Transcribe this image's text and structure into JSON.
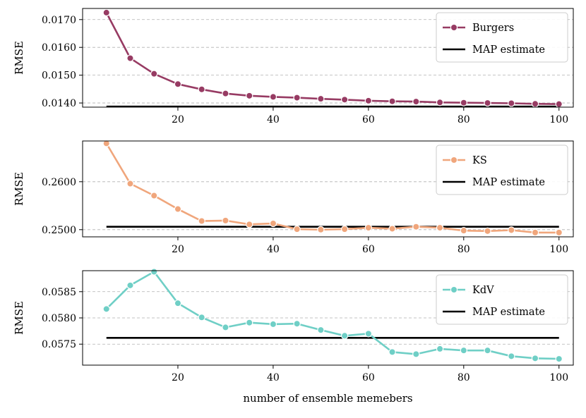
{
  "chart_data": [
    {
      "type": "line",
      "ylabel": "RMSE",
      "xlabel": "",
      "xlim": [
        0,
        103
      ],
      "ylim": [
        0.01385,
        0.0174
      ],
      "xticks": [
        20,
        40,
        60,
        80,
        100
      ],
      "yticks": [
        0.014,
        0.015,
        0.016,
        0.017
      ],
      "ytick_labels": [
        "0.0140",
        "0.0150",
        "0.0160",
        "0.0170"
      ],
      "grid": "y-dashed",
      "legend_position": "top-right",
      "series": [
        {
          "name": "Burgers",
          "color": "#973b63",
          "x": [
            5,
            10,
            15,
            20,
            25,
            30,
            35,
            40,
            45,
            50,
            55,
            60,
            65,
            70,
            75,
            80,
            85,
            90,
            95,
            100
          ],
          "values": [
            0.01725,
            0.01561,
            0.01505,
            0.01468,
            0.01449,
            0.01434,
            0.01426,
            0.01422,
            0.01419,
            0.01415,
            0.01412,
            0.01408,
            0.01406,
            0.01405,
            0.01402,
            0.01401,
            0.014,
            0.01399,
            0.01397,
            0.01396
          ]
        }
      ],
      "reference": {
        "name": "MAP estimate",
        "value": 0.01387,
        "x_range": [
          5,
          100
        ],
        "color": "#000000"
      }
    },
    {
      "type": "line",
      "ylabel": "RMSE",
      "xlabel": "",
      "xlim": [
        0,
        103
      ],
      "ylim": [
        0.2485,
        0.2685
      ],
      "xticks": [
        20,
        40,
        60,
        80,
        100
      ],
      "yticks": [
        0.25,
        0.26
      ],
      "ytick_labels": [
        "0.2500",
        "0.2600"
      ],
      "grid": "y-dashed",
      "legend_position": "top-right",
      "series": [
        {
          "name": "KS",
          "color": "#f0a67c",
          "x": [
            5,
            10,
            15,
            20,
            25,
            30,
            35,
            40,
            45,
            50,
            55,
            60,
            65,
            70,
            75,
            80,
            85,
            90,
            95,
            100
          ],
          "values": [
            0.268,
            0.2596,
            0.2571,
            0.2543,
            0.2518,
            0.2519,
            0.2511,
            0.2513,
            0.2501,
            0.25,
            0.2501,
            0.2504,
            0.2502,
            0.2506,
            0.2504,
            0.2498,
            0.2497,
            0.2499,
            0.2494,
            0.2494
          ]
        }
      ],
      "reference": {
        "name": "MAP estimate",
        "value": 0.2506,
        "x_range": [
          5,
          100
        ],
        "color": "#000000"
      }
    },
    {
      "type": "line",
      "ylabel": "RMSE",
      "xlabel": "number of ensemble memebers",
      "xlim": [
        0,
        103
      ],
      "ylim": [
        0.0571,
        0.0589
      ],
      "xticks": [
        20,
        40,
        60,
        80,
        100
      ],
      "yticks": [
        0.0575,
        0.058,
        0.0585
      ],
      "ytick_labels": [
        "0.0575",
        "0.0580",
        "0.0585"
      ],
      "grid": "y-dashed",
      "legend_position": "top-right",
      "series": [
        {
          "name": "KdV",
          "color": "#6fcfc6",
          "x": [
            5,
            10,
            15,
            20,
            25,
            30,
            35,
            40,
            45,
            50,
            55,
            60,
            65,
            70,
            75,
            80,
            85,
            90,
            95,
            100
          ],
          "values": [
            0.05817,
            0.05862,
            0.05888,
            0.05828,
            0.05801,
            0.05782,
            0.05791,
            0.05788,
            0.05789,
            0.05777,
            0.05766,
            0.0577,
            0.05735,
            0.05731,
            0.05741,
            0.05738,
            0.05738,
            0.05727,
            0.05723,
            0.05722
          ]
        }
      ],
      "reference": {
        "name": "MAP estimate",
        "value": 0.05762,
        "x_range": [
          5,
          100
        ],
        "color": "#000000"
      }
    }
  ]
}
